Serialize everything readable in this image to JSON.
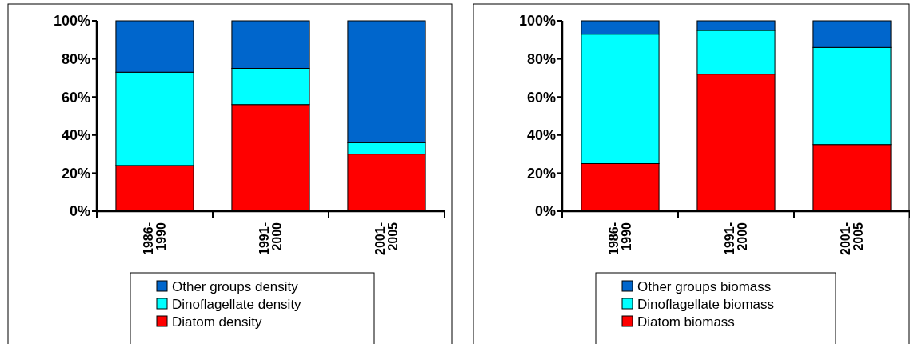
{
  "chart_data": [
    {
      "type": "bar",
      "stacked": true,
      "categories": [
        "1986-1990",
        "1991-2000",
        "2001-2005"
      ],
      "ylim": [
        0,
        100
      ],
      "yticks": [
        {
          "value": 0,
          "label": "0%"
        },
        {
          "value": 20,
          "label": "20%"
        },
        {
          "value": 40,
          "label": "40%"
        },
        {
          "value": 60,
          "label": "60%"
        },
        {
          "value": 80,
          "label": "80%"
        },
        {
          "value": 100,
          "label": "100%"
        }
      ],
      "grid": false,
      "legend": "bottom",
      "series": [
        {
          "name": "Diatom density",
          "color": "#ff0000",
          "values": [
            24,
            56,
            30
          ]
        },
        {
          "name": "Dinoflagellate density",
          "color": "#00ffff",
          "values": [
            49,
            19,
            6
          ]
        },
        {
          "name": "Other groups density",
          "color": "#0066cc",
          "values": [
            27,
            25,
            64
          ]
        }
      ]
    },
    {
      "type": "bar",
      "stacked": true,
      "categories": [
        "1986-1990",
        "1991-2000",
        "2001-2005"
      ],
      "ylim": [
        0,
        100
      ],
      "yticks": [
        {
          "value": 0,
          "label": "0%"
        },
        {
          "value": 20,
          "label": "20%"
        },
        {
          "value": 40,
          "label": "40%"
        },
        {
          "value": 60,
          "label": "60%"
        },
        {
          "value": 80,
          "label": "80%"
        },
        {
          "value": 100,
          "label": "100%"
        }
      ],
      "grid": false,
      "legend": "bottom",
      "series": [
        {
          "name": "Diatom biomass",
          "color": "#ff0000",
          "values": [
            25,
            72,
            35
          ]
        },
        {
          "name": "Dinoflagellate biomass",
          "color": "#00ffff",
          "values": [
            68,
            23,
            51
          ]
        },
        {
          "name": "Other groups biomass",
          "color": "#0066cc",
          "values": [
            7,
            5,
            14
          ]
        }
      ]
    }
  ]
}
